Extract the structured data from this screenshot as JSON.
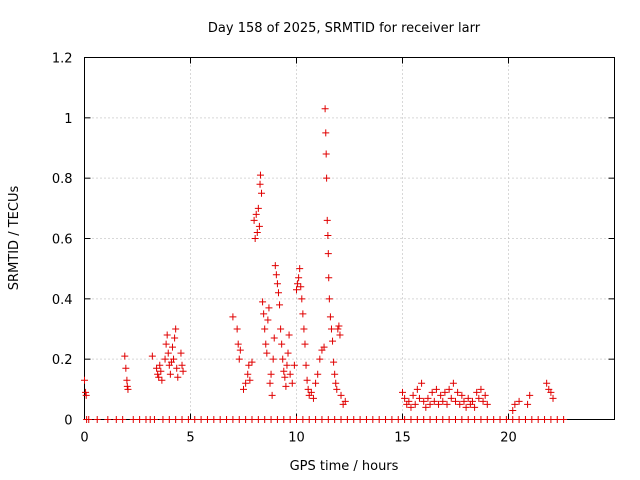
{
  "chart_data": {
    "type": "scatter",
    "title": "Day 158 of 2025, SRMTID for receiver larr",
    "xlabel": "GPS time / hours",
    "ylabel": "SRMTID / TECUs",
    "xlim": [
      0,
      25
    ],
    "ylim": [
      0,
      1.2
    ],
    "xticks": [
      0,
      5,
      10,
      15,
      20
    ],
    "xtick_labels": [
      "0",
      "5",
      "10",
      "15",
      "20"
    ],
    "yticks": [
      0,
      0.2,
      0.4,
      0.6,
      0.8,
      1.0,
      1.2
    ],
    "ytick_labels": [
      "0",
      "0.2",
      "0.4",
      "0.6",
      "0.8",
      "1",
      "1.2"
    ],
    "grid": true,
    "marker": "+",
    "color": "#e00000",
    "series": [
      {
        "name": "SRMTID",
        "points": [
          [
            0.0,
            0.13
          ],
          [
            0.05,
            0.09
          ],
          [
            0.08,
            0.08
          ],
          [
            0.1,
            0.0
          ],
          [
            1.9,
            0.21
          ],
          [
            1.95,
            0.17
          ],
          [
            2.0,
            0.13
          ],
          [
            2.02,
            0.11
          ],
          [
            2.05,
            0.1
          ],
          [
            3.2,
            0.21
          ],
          [
            3.4,
            0.17
          ],
          [
            3.45,
            0.15
          ],
          [
            3.5,
            0.14
          ],
          [
            3.55,
            0.18
          ],
          [
            3.6,
            0.16
          ],
          [
            3.65,
            0.13
          ],
          [
            3.8,
            0.2
          ],
          [
            3.85,
            0.25
          ],
          [
            3.9,
            0.28
          ],
          [
            3.95,
            0.22
          ],
          [
            4.0,
            0.18
          ],
          [
            4.05,
            0.15
          ],
          [
            4.1,
            0.19
          ],
          [
            4.15,
            0.24
          ],
          [
            4.2,
            0.2
          ],
          [
            4.25,
            0.27
          ],
          [
            4.3,
            0.3
          ],
          [
            4.35,
            0.17
          ],
          [
            4.4,
            0.14
          ],
          [
            4.55,
            0.22
          ],
          [
            4.6,
            0.18
          ],
          [
            4.65,
            0.16
          ],
          [
            7.0,
            0.34
          ],
          [
            7.2,
            0.3
          ],
          [
            7.25,
            0.25
          ],
          [
            7.3,
            0.2
          ],
          [
            7.35,
            0.23
          ],
          [
            7.5,
            0.1
          ],
          [
            7.6,
            0.12
          ],
          [
            7.7,
            0.15
          ],
          [
            7.75,
            0.18
          ],
          [
            7.8,
            0.13
          ],
          [
            7.9,
            0.19
          ],
          [
            8.0,
            0.66
          ],
          [
            8.05,
            0.6
          ],
          [
            8.1,
            0.68
          ],
          [
            8.15,
            0.62
          ],
          [
            8.2,
            0.7
          ],
          [
            8.25,
            0.64
          ],
          [
            8.28,
            0.78
          ],
          [
            8.3,
            0.81
          ],
          [
            8.35,
            0.75
          ],
          [
            8.4,
            0.39
          ],
          [
            8.45,
            0.35
          ],
          [
            8.5,
            0.3
          ],
          [
            8.55,
            0.25
          ],
          [
            8.6,
            0.22
          ],
          [
            8.65,
            0.33
          ],
          [
            8.7,
            0.37
          ],
          [
            8.75,
            0.12
          ],
          [
            8.8,
            0.15
          ],
          [
            8.85,
            0.08
          ],
          [
            8.9,
            0.2
          ],
          [
            8.95,
            0.27
          ],
          [
            9.0,
            0.51
          ],
          [
            9.05,
            0.48
          ],
          [
            9.1,
            0.45
          ],
          [
            9.15,
            0.42
          ],
          [
            9.2,
            0.38
          ],
          [
            9.25,
            0.3
          ],
          [
            9.3,
            0.25
          ],
          [
            9.35,
            0.2
          ],
          [
            9.4,
            0.16
          ],
          [
            9.45,
            0.14
          ],
          [
            9.5,
            0.11
          ],
          [
            9.55,
            0.18
          ],
          [
            9.6,
            0.22
          ],
          [
            9.65,
            0.28
          ],
          [
            9.7,
            0.15
          ],
          [
            9.8,
            0.12
          ],
          [
            9.9,
            0.18
          ],
          [
            10.0,
            0.43
          ],
          [
            10.05,
            0.45
          ],
          [
            10.1,
            0.47
          ],
          [
            10.15,
            0.5
          ],
          [
            10.2,
            0.44
          ],
          [
            10.25,
            0.4
          ],
          [
            10.3,
            0.35
          ],
          [
            10.35,
            0.3
          ],
          [
            10.4,
            0.25
          ],
          [
            10.45,
            0.18
          ],
          [
            10.5,
            0.13
          ],
          [
            10.55,
            0.1
          ],
          [
            10.6,
            0.08
          ],
          [
            10.7,
            0.09
          ],
          [
            10.8,
            0.07
          ],
          [
            10.9,
            0.12
          ],
          [
            11.0,
            0.15
          ],
          [
            11.1,
            0.2
          ],
          [
            11.2,
            0.23
          ],
          [
            11.3,
            0.24
          ],
          [
            11.35,
            1.03
          ],
          [
            11.38,
            0.95
          ],
          [
            11.4,
            0.88
          ],
          [
            11.42,
            0.8
          ],
          [
            11.45,
            0.66
          ],
          [
            11.48,
            0.61
          ],
          [
            11.5,
            0.55
          ],
          [
            11.52,
            0.47
          ],
          [
            11.55,
            0.4
          ],
          [
            11.6,
            0.34
          ],
          [
            11.65,
            0.3
          ],
          [
            11.7,
            0.26
          ],
          [
            11.75,
            0.19
          ],
          [
            11.8,
            0.15
          ],
          [
            11.85,
            0.12
          ],
          [
            11.9,
            0.1
          ],
          [
            11.95,
            0.3
          ],
          [
            12.0,
            0.31
          ],
          [
            12.05,
            0.28
          ],
          [
            12.1,
            0.08
          ],
          [
            12.2,
            0.05
          ],
          [
            12.3,
            0.06
          ],
          [
            15.0,
            0.09
          ],
          [
            15.1,
            0.07
          ],
          [
            15.2,
            0.05
          ],
          [
            15.3,
            0.06
          ],
          [
            15.4,
            0.04
          ],
          [
            15.5,
            0.08
          ],
          [
            15.6,
            0.05
          ],
          [
            15.7,
            0.1
          ],
          [
            15.8,
            0.07
          ],
          [
            15.9,
            0.12
          ],
          [
            16.0,
            0.06
          ],
          [
            16.1,
            0.04
          ],
          [
            16.2,
            0.07
          ],
          [
            16.3,
            0.05
          ],
          [
            16.4,
            0.09
          ],
          [
            16.5,
            0.06
          ],
          [
            16.6,
            0.1
          ],
          [
            16.7,
            0.05
          ],
          [
            16.8,
            0.08
          ],
          [
            16.9,
            0.06
          ],
          [
            17.0,
            0.09
          ],
          [
            17.1,
            0.05
          ],
          [
            17.2,
            0.1
          ],
          [
            17.3,
            0.07
          ],
          [
            17.4,
            0.12
          ],
          [
            17.5,
            0.06
          ],
          [
            17.6,
            0.09
          ],
          [
            17.7,
            0.05
          ],
          [
            17.8,
            0.08
          ],
          [
            17.9,
            0.06
          ],
          [
            18.0,
            0.04
          ],
          [
            18.1,
            0.07
          ],
          [
            18.2,
            0.05
          ],
          [
            18.3,
            0.06
          ],
          [
            18.4,
            0.04
          ],
          [
            18.5,
            0.09
          ],
          [
            18.6,
            0.07
          ],
          [
            18.7,
            0.1
          ],
          [
            18.8,
            0.06
          ],
          [
            18.9,
            0.08
          ],
          [
            19.0,
            0.05
          ],
          [
            20.2,
            0.03
          ],
          [
            20.3,
            0.05
          ],
          [
            20.5,
            0.06
          ],
          [
            20.9,
            0.05
          ],
          [
            21.0,
            0.08
          ],
          [
            21.8,
            0.12
          ],
          [
            21.9,
            0.1
          ],
          [
            22.0,
            0.09
          ],
          [
            22.1,
            0.07
          ],
          [
            0.2,
            0.0
          ],
          [
            0.6,
            0.0
          ],
          [
            1.1,
            0.0
          ],
          [
            1.5,
            0.0
          ],
          [
            1.8,
            0.0
          ],
          [
            2.3,
            0.0
          ],
          [
            2.6,
            0.0
          ],
          [
            2.9,
            0.0
          ],
          [
            3.1,
            0.0
          ],
          [
            3.3,
            0.0
          ],
          [
            3.7,
            0.0
          ],
          [
            4.0,
            0.0
          ],
          [
            4.3,
            0.0
          ],
          [
            4.6,
            0.0
          ],
          [
            4.9,
            0.0
          ],
          [
            5.2,
            0.0
          ],
          [
            5.5,
            0.0
          ],
          [
            5.8,
            0.0
          ],
          [
            6.1,
            0.0
          ],
          [
            6.4,
            0.0
          ],
          [
            6.7,
            0.0
          ],
          [
            7.0,
            0.0
          ],
          [
            7.3,
            0.0
          ],
          [
            7.6,
            0.0
          ],
          [
            7.9,
            0.0
          ],
          [
            8.2,
            0.0
          ],
          [
            8.5,
            0.0
          ],
          [
            8.8,
            0.0
          ],
          [
            9.1,
            0.0
          ],
          [
            9.4,
            0.0
          ],
          [
            9.7,
            0.0
          ],
          [
            10.0,
            0.0
          ],
          [
            10.3,
            0.0
          ],
          [
            10.6,
            0.0
          ],
          [
            10.9,
            0.0
          ],
          [
            11.2,
            0.0
          ],
          [
            11.5,
            0.0
          ],
          [
            11.8,
            0.0
          ],
          [
            12.1,
            0.0
          ],
          [
            12.4,
            0.0
          ],
          [
            12.7,
            0.0
          ],
          [
            13.0,
            0.0
          ],
          [
            13.3,
            0.0
          ],
          [
            13.6,
            0.0
          ],
          [
            13.9,
            0.0
          ],
          [
            14.2,
            0.0
          ],
          [
            14.5,
            0.0
          ],
          [
            14.8,
            0.0
          ],
          [
            15.1,
            0.0
          ],
          [
            15.4,
            0.0
          ],
          [
            15.7,
            0.0
          ],
          [
            16.0,
            0.0
          ],
          [
            16.3,
            0.0
          ],
          [
            16.6,
            0.0
          ],
          [
            16.9,
            0.0
          ],
          [
            17.2,
            0.0
          ],
          [
            17.5,
            0.0
          ],
          [
            17.8,
            0.0
          ],
          [
            18.1,
            0.0
          ],
          [
            18.4,
            0.0
          ],
          [
            18.7,
            0.0
          ],
          [
            19.0,
            0.0
          ],
          [
            19.3,
            0.0
          ],
          [
            19.6,
            0.0
          ],
          [
            19.9,
            0.0
          ],
          [
            20.2,
            0.0
          ],
          [
            20.5,
            0.0
          ],
          [
            20.8,
            0.0
          ],
          [
            21.1,
            0.0
          ],
          [
            21.4,
            0.0
          ],
          [
            21.7,
            0.0
          ],
          [
            22.0,
            0.0
          ],
          [
            22.3,
            0.0
          ],
          [
            22.6,
            0.0
          ]
        ]
      }
    ]
  }
}
